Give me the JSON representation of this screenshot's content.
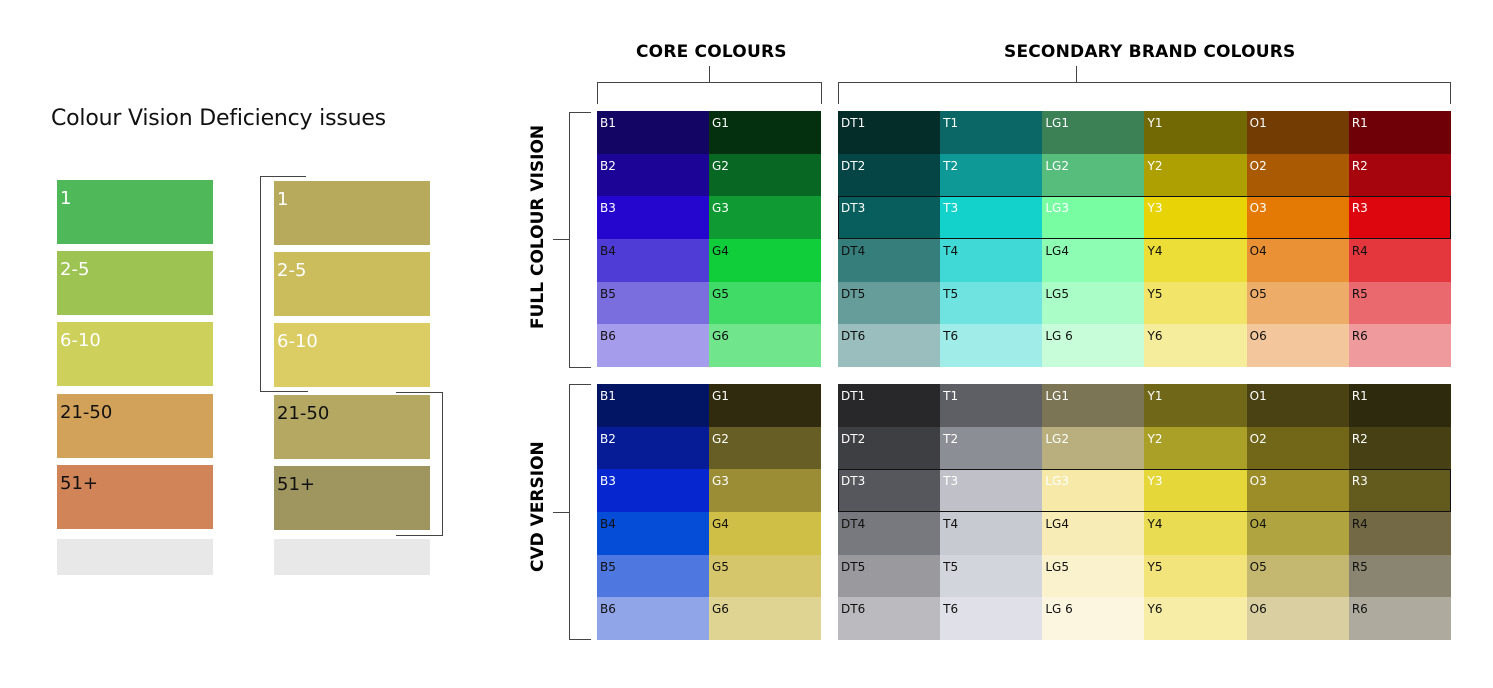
{
  "title": "Colour Vision Deficiency issues",
  "legend": {
    "normal": [
      {
        "label": "1",
        "color": "#4fb858",
        "text": "#ffffff"
      },
      {
        "label": "2-5",
        "color": "#9dc353",
        "text": "#ffffff"
      },
      {
        "label": "6-10",
        "color": "#cdd05a",
        "text": "#ffffff"
      },
      {
        "label": "21-50",
        "color": "#d2a25a",
        "text": "#111111"
      },
      {
        "label": "51+",
        "color": "#d18457",
        "text": "#111111"
      },
      {
        "label": "",
        "color": "#e8e8e8",
        "text": "#111111"
      }
    ],
    "cvd": [
      {
        "label": "1",
        "color": "#b7aa5d",
        "text": "#ffffff"
      },
      {
        "label": "2-5",
        "color": "#cbbd5c",
        "text": "#ffffff"
      },
      {
        "label": "6-10",
        "color": "#dbcc63",
        "text": "#ffffff"
      },
      {
        "label": "21-50",
        "color": "#b4a862",
        "text": "#111111"
      },
      {
        "label": "51+",
        "color": "#9f955e",
        "text": "#111111"
      },
      {
        "label": "",
        "color": "#e8e8e8",
        "text": "#111111"
      }
    ]
  },
  "headers": {
    "core": "CORE COLOURS",
    "secondary": "SECONDARY BRAND COLOURS",
    "full": "FULL COLOUR VISION",
    "cvd": "CVD VERSION"
  },
  "full": {
    "core": [
      [
        {
          "l": "B1",
          "c": "#130563",
          "t": "#fff"
        },
        {
          "l": "G1",
          "c": "#053010",
          "t": "#fff"
        }
      ],
      [
        {
          "l": "B2",
          "c": "#1c0596",
          "t": "#fff"
        },
        {
          "l": "G2",
          "c": "#076723",
          "t": "#fff"
        }
      ],
      [
        {
          "l": "B3",
          "c": "#2506cf",
          "t": "#fff"
        },
        {
          "l": "G3",
          "c": "#0f9a33",
          "t": "#fff"
        }
      ],
      [
        {
          "l": "B4",
          "c": "#4f3bd6",
          "t": "#111"
        },
        {
          "l": "G4",
          "c": "#10cd3a",
          "t": "#111"
        }
      ],
      [
        {
          "l": "B5",
          "c": "#7a6edf",
          "t": "#111"
        },
        {
          "l": "G5",
          "c": "#3fdb66",
          "t": "#111"
        }
      ],
      [
        {
          "l": "B6",
          "c": "#a59deb",
          "t": "#111"
        },
        {
          "l": "G6",
          "c": "#70e58c",
          "t": "#111"
        }
      ]
    ],
    "secondary": [
      [
        {
          "l": "DT1",
          "c": "#042d2a",
          "t": "#fff"
        },
        {
          "l": "T1",
          "c": "#0a6765",
          "t": "#fff"
        },
        {
          "l": "LG1",
          "c": "#3c8055",
          "t": "#fff"
        },
        {
          "l": "Y1",
          "c": "#736904",
          "t": "#fff"
        },
        {
          "l": "O1",
          "c": "#723c03",
          "t": "#fff"
        },
        {
          "l": "R1",
          "c": "#6f0007",
          "t": "#fff"
        }
      ],
      [
        {
          "l": "DT2",
          "c": "#054545",
          "t": "#fff"
        },
        {
          "l": "T2",
          "c": "#0e9896",
          "t": "#fff"
        },
        {
          "l": "LG2",
          "c": "#56bd7c",
          "t": "#fff"
        },
        {
          "l": "Y2",
          "c": "#ae9f03",
          "t": "#fff"
        },
        {
          "l": "O2",
          "c": "#aa5a03",
          "t": "#fff"
        },
        {
          "l": "R2",
          "c": "#a6050d",
          "t": "#fff"
        }
      ],
      [
        {
          "l": "DT3",
          "c": "#075e5d",
          "t": "#fff"
        },
        {
          "l": "T3",
          "c": "#13d1cb",
          "t": "#fff"
        },
        {
          "l": "LG3",
          "c": "#78fda3",
          "t": "#fff"
        },
        {
          "l": "Y3",
          "c": "#e8d406",
          "t": "#fff"
        },
        {
          "l": "O3",
          "c": "#e47a03",
          "t": "#fff"
        },
        {
          "l": "R3",
          "c": "#dd050e",
          "t": "#fff"
        }
      ],
      [
        {
          "l": "DT4",
          "c": "#357e7c",
          "t": "#111"
        },
        {
          "l": "T4",
          "c": "#40d9d5",
          "t": "#111"
        },
        {
          "l": "LG4",
          "c": "#8efdb4",
          "t": "#111"
        },
        {
          "l": "Y4",
          "c": "#ecdd37",
          "t": "#111"
        },
        {
          "l": "O4",
          "c": "#ea9136",
          "t": "#111"
        },
        {
          "l": "R4",
          "c": "#e3373d",
          "t": "#111"
        }
      ],
      [
        {
          "l": "DT5",
          "c": "#669d9b",
          "t": "#111"
        },
        {
          "l": "T5",
          "c": "#6fe3df",
          "t": "#111"
        },
        {
          "l": "LG5",
          "c": "#aafdc7",
          "t": "#111"
        },
        {
          "l": "Y5",
          "c": "#f1e469",
          "t": "#111"
        },
        {
          "l": "O5",
          "c": "#edad69",
          "t": "#111"
        },
        {
          "l": "R5",
          "c": "#e9696e",
          "t": "#111"
        }
      ],
      [
        {
          "l": "DT6",
          "c": "#9abebd",
          "t": "#111"
        },
        {
          "l": "T6",
          "c": "#a0ece9",
          "t": "#111"
        },
        {
          "l": "LG 6",
          "c": "#c7fdd9",
          "t": "#111"
        },
        {
          "l": "Y6",
          "c": "#f5ed9b",
          "t": "#111"
        },
        {
          "l": "O6",
          "c": "#f3c79b",
          "t": "#111"
        },
        {
          "l": "R6",
          "c": "#ef9b9e",
          "t": "#111"
        }
      ]
    ]
  },
  "cvd": {
    "core": [
      [
        {
          "l": "B1",
          "c": "#021464",
          "t": "#fff"
        },
        {
          "l": "G1",
          "c": "#302b0e",
          "t": "#fff"
        }
      ],
      [
        {
          "l": "B2",
          "c": "#061c96",
          "t": "#fff"
        },
        {
          "l": "G2",
          "c": "#665e24",
          "t": "#fff"
        }
      ],
      [
        {
          "l": "B3",
          "c": "#0626cf",
          "t": "#fff"
        },
        {
          "l": "G3",
          "c": "#9b8d35",
          "t": "#fff"
        }
      ],
      [
        {
          "l": "B4",
          "c": "#054dd6",
          "t": "#111"
        },
        {
          "l": "G4",
          "c": "#cfbf47",
          "t": "#111"
        }
      ],
      [
        {
          "l": "B5",
          "c": "#4e78e0",
          "t": "#111"
        },
        {
          "l": "G5",
          "c": "#d5c66c",
          "t": "#111"
        }
      ],
      [
        {
          "l": "B6",
          "c": "#90a4e8",
          "t": "#111"
        },
        {
          "l": "G6",
          "c": "#dfd491",
          "t": "#111"
        }
      ]
    ],
    "secondary": [
      [
        {
          "l": "DT1",
          "c": "#28282a",
          "t": "#fff"
        },
        {
          "l": "T1",
          "c": "#5e5f64",
          "t": "#fff"
        },
        {
          "l": "LG1",
          "c": "#7b7555",
          "t": "#fff"
        },
        {
          "l": "Y1",
          "c": "#706719",
          "t": "#fff"
        },
        {
          "l": "O1",
          "c": "#4a4212",
          "t": "#fff"
        },
        {
          "l": "R1",
          "c": "#2e2a0e",
          "t": "#fff"
        }
      ],
      [
        {
          "l": "DT2",
          "c": "#3e3f43",
          "t": "#fff"
        },
        {
          "l": "T2",
          "c": "#8c8e95",
          "t": "#fff"
        },
        {
          "l": "LG2",
          "c": "#b9af7e",
          "t": "#fff"
        },
        {
          "l": "Y2",
          "c": "#aba027",
          "t": "#fff"
        },
        {
          "l": "O2",
          "c": "#726719",
          "t": "#fff"
        },
        {
          "l": "R2",
          "c": "#474015",
          "t": "#fff"
        }
      ],
      [
        {
          "l": "DT3",
          "c": "#56575c",
          "t": "#fff"
        },
        {
          "l": "T3",
          "c": "#bfc0c8",
          "t": "#fff"
        },
        {
          "l": "LG3",
          "c": "#f7eaa8",
          "t": "#fff"
        },
        {
          "l": "Y3",
          "c": "#e5d63a",
          "t": "#fff"
        },
        {
          "l": "O3",
          "c": "#9c8d28",
          "t": "#fff"
        },
        {
          "l": "R3",
          "c": "#635b1e",
          "t": "#fff"
        }
      ],
      [
        {
          "l": "DT4",
          "c": "#78797e",
          "t": "#111"
        },
        {
          "l": "T4",
          "c": "#c8cad1",
          "t": "#111"
        },
        {
          "l": "LG4",
          "c": "#f8ecb6",
          "t": "#111"
        },
        {
          "l": "Y4",
          "c": "#eadc52",
          "t": "#111"
        },
        {
          "l": "O4",
          "c": "#b0a440",
          "t": "#111"
        },
        {
          "l": "R4",
          "c": "#736a45",
          "t": "#111"
        }
      ],
      [
        {
          "l": "DT5",
          "c": "#99999e",
          "t": "#111"
        },
        {
          "l": "T5",
          "c": "#d3d5dc",
          "t": "#111"
        },
        {
          "l": "LG5",
          "c": "#faf1cd",
          "t": "#111"
        },
        {
          "l": "Y5",
          "c": "#f2e47a",
          "t": "#111"
        },
        {
          "l": "O5",
          "c": "#c4b870",
          "t": "#111"
        },
        {
          "l": "R5",
          "c": "#8a8570",
          "t": "#111"
        }
      ],
      [
        {
          "l": "DT6",
          "c": "#bbbbbf",
          "t": "#111"
        },
        {
          "l": "T6",
          "c": "#e0e1e8",
          "t": "#111"
        },
        {
          "l": "LG 6",
          "c": "#fcf6e0",
          "t": "#111"
        },
        {
          "l": "Y6",
          "c": "#f8eda6",
          "t": "#111"
        },
        {
          "l": "O6",
          "c": "#d9cfa0",
          "t": "#111"
        },
        {
          "l": "R6",
          "c": "#aeab9e",
          "t": "#111"
        }
      ]
    ]
  }
}
